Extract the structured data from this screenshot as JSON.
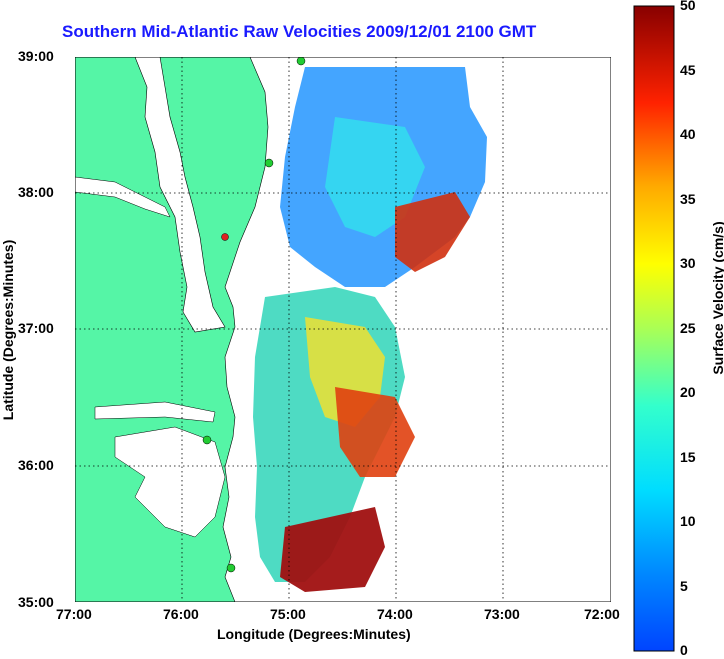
{
  "title": "Southern Mid-Atlantic Raw Velocities 2009/12/01 2100 GMT",
  "xlabel": "Longitude (Degrees:Minutes)",
  "ylabel": "Latitude (Degrees:Minutes)",
  "colorbar_label": "Surface Velocity (cm/s)",
  "colors": {
    "land": "#55f5a6",
    "title": "#1a1aff",
    "sites": "#22cc33"
  },
  "x_ticks": [
    "77:00",
    "76:00",
    "75:00",
    "74:00",
    "73:00",
    "72:00"
  ],
  "y_ticks": [
    "39:00",
    "38:00",
    "37:00",
    "36:00",
    "35:00"
  ],
  "colorbar_ticks": [
    "50",
    "45",
    "40",
    "35",
    "30",
    "25",
    "20",
    "15",
    "10",
    "5",
    "0"
  ],
  "chart_data": {
    "type": "heatmap",
    "xlim": [
      -77,
      -72
    ],
    "ylim": [
      35,
      39
    ],
    "clim": [
      0,
      50
    ],
    "grid": true
  }
}
